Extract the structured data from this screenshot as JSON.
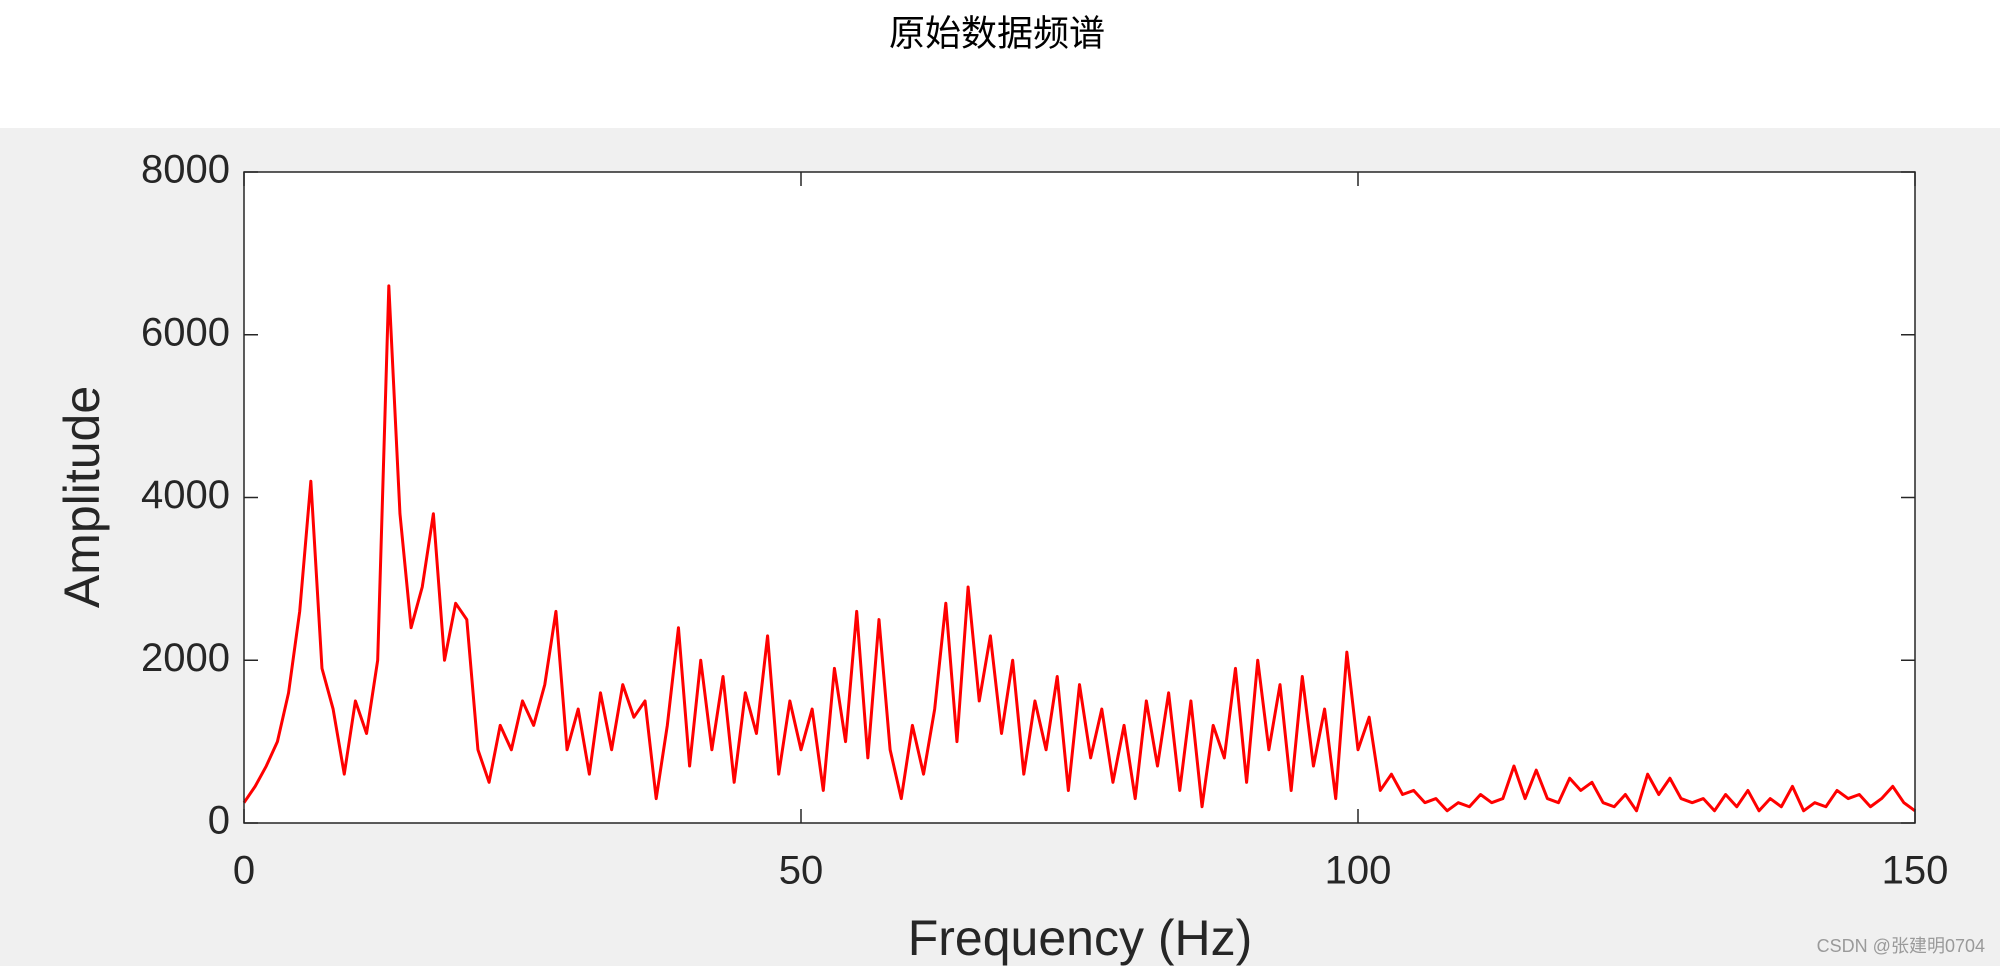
{
  "chart_data": {
    "type": "line",
    "title": "原始数据频谱",
    "xlabel": "Frequency (Hz)",
    "ylabel": "Amplitude",
    "xlim": [
      0,
      150
    ],
    "ylim": [
      0,
      8000
    ],
    "xticks": [
      0,
      50,
      100,
      150
    ],
    "yticks": [
      0,
      2000,
      4000,
      6000,
      8000
    ],
    "x": [
      0,
      1,
      2,
      3,
      4,
      5,
      6,
      7,
      8,
      9,
      10,
      11,
      12,
      13,
      14,
      15,
      16,
      17,
      18,
      19,
      20,
      21,
      22,
      23,
      24,
      25,
      26,
      27,
      28,
      29,
      30,
      31,
      32,
      33,
      34,
      35,
      36,
      37,
      38,
      39,
      40,
      41,
      42,
      43,
      44,
      45,
      46,
      47,
      48,
      49,
      50,
      51,
      52,
      53,
      54,
      55,
      56,
      57,
      58,
      59,
      60,
      61,
      62,
      63,
      64,
      65,
      66,
      67,
      68,
      69,
      70,
      71,
      72,
      73,
      74,
      75,
      76,
      77,
      78,
      79,
      80,
      81,
      82,
      83,
      84,
      85,
      86,
      87,
      88,
      89,
      90,
      91,
      92,
      93,
      94,
      95,
      96,
      97,
      98,
      99,
      100,
      101,
      102,
      103,
      104,
      105,
      106,
      107,
      108,
      109,
      110,
      111,
      112,
      113,
      114,
      115,
      116,
      117,
      118,
      119,
      120,
      121,
      122,
      123,
      124,
      125,
      126,
      127,
      128,
      129,
      130,
      131,
      132,
      133,
      134,
      135,
      136,
      137,
      138,
      139,
      140,
      141,
      142,
      143,
      144,
      145,
      146,
      147,
      148,
      149,
      150
    ],
    "series": [
      {
        "color": "#ff0000",
        "values": [
          250,
          450,
          700,
          1000,
          1600,
          2600,
          4200,
          1900,
          1400,
          600,
          1500,
          1100,
          2000,
          6600,
          3800,
          2400,
          2900,
          3800,
          2000,
          2700,
          2500,
          900,
          500,
          1200,
          900,
          1500,
          1200,
          1700,
          2600,
          900,
          1400,
          600,
          1600,
          900,
          1700,
          1300,
          1500,
          300,
          1200,
          2400,
          700,
          2000,
          900,
          1800,
          500,
          1600,
          1100,
          2300,
          600,
          1500,
          900,
          1400,
          400,
          1900,
          1000,
          2600,
          800,
          2500,
          900,
          300,
          1200,
          600,
          1400,
          2700,
          1000,
          2900,
          1500,
          2300,
          1100,
          2000,
          600,
          1500,
          900,
          1800,
          400,
          1700,
          800,
          1400,
          500,
          1200,
          300,
          1500,
          700,
          1600,
          400,
          1500,
          200,
          1200,
          800,
          1900,
          500,
          2000,
          900,
          1700,
          400,
          1800,
          700,
          1400,
          300,
          2100,
          900,
          1300,
          400,
          600,
          350,
          400,
          250,
          300,
          150,
          250,
          200,
          350,
          250,
          300,
          700,
          300,
          650,
          300,
          250,
          550,
          400,
          500,
          250,
          200,
          350,
          150,
          600,
          350,
          550,
          300,
          250,
          300,
          150,
          350,
          200,
          400,
          150,
          300,
          200,
          450,
          150,
          250,
          200,
          400,
          300,
          350,
          200,
          300,
          450,
          250,
          150
        ]
      }
    ]
  },
  "watermark": "CSDN @张建明0704"
}
